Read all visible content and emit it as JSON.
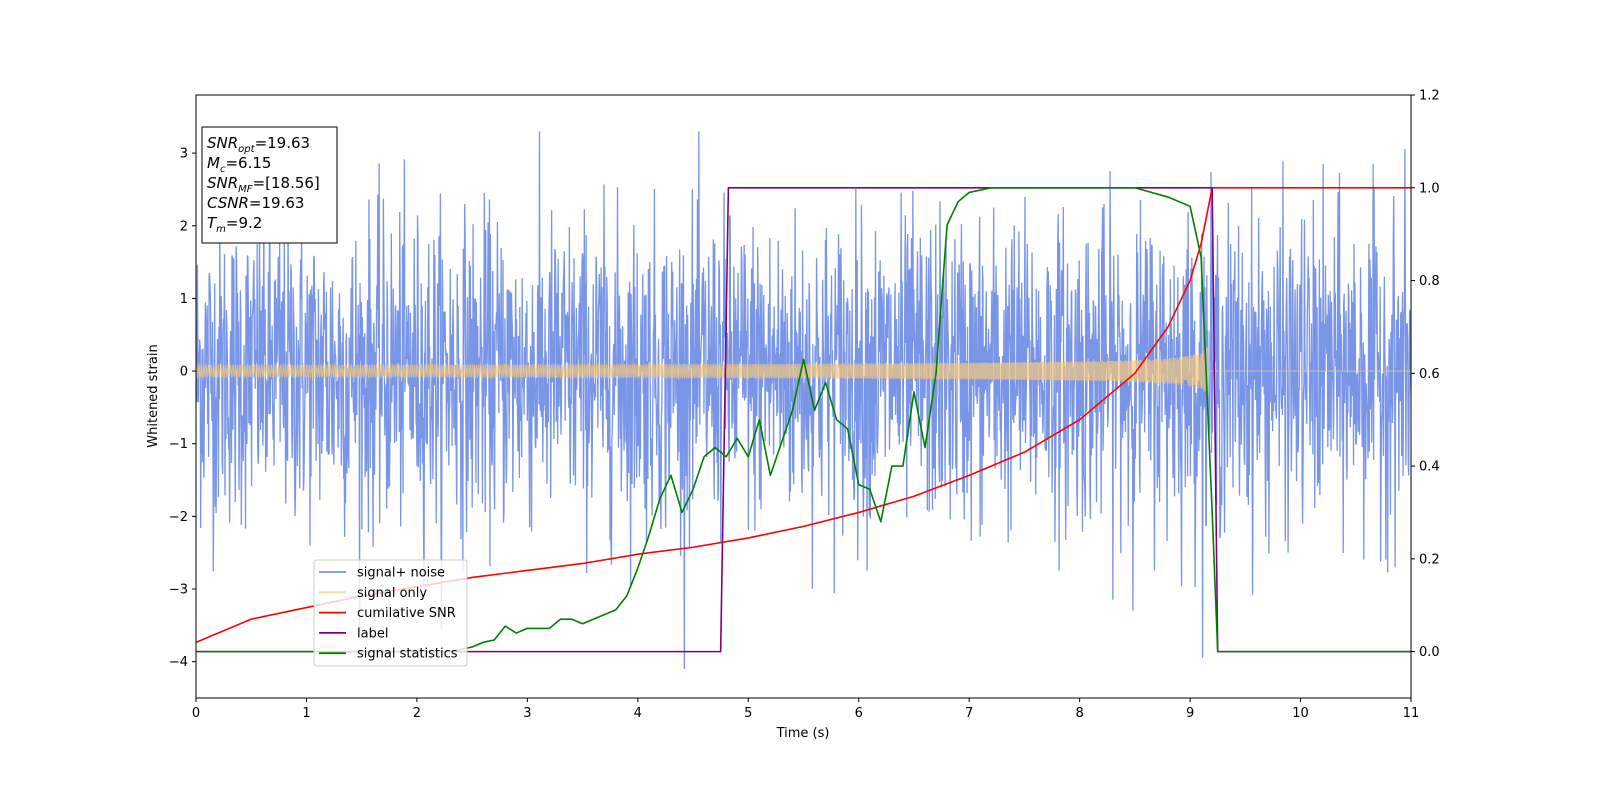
{
  "chart_data": {
    "type": "line",
    "xlabel": "Time (s)",
    "ylabel": "Whitened strain",
    "xlim": [
      0,
      11
    ],
    "ylim_left": [
      -4.5,
      3.8
    ],
    "ylim_right": [
      -0.1,
      1.2
    ],
    "x_ticks": [
      "0",
      "1",
      "2",
      "3",
      "4",
      "5",
      "6",
      "7",
      "8",
      "9",
      "10",
      "11"
    ],
    "y_left_ticks": [
      "−4",
      "−3",
      "−2",
      "−1",
      "0",
      "1",
      "2",
      "3"
    ],
    "y_right_ticks": [
      "0.0",
      "0.2",
      "0.4",
      "0.6",
      "0.8",
      "1.0",
      "1.2"
    ],
    "grid": false,
    "legend_position": "lower-left",
    "annotation": [
      {
        "name": "SNR",
        "sub": "opt",
        "text": "=19.63"
      },
      {
        "name": "M",
        "sub": "c",
        "text": "=6.15"
      },
      {
        "name": "SNR",
        "sub": "MF",
        "text": "=[18.56]"
      },
      {
        "name": "CSNR",
        "sub": "",
        "text": "=19.63"
      },
      {
        "name": "T",
        "sub": "m",
        "text": "=9.2"
      }
    ],
    "series": [
      {
        "name": "signal+ noise",
        "axis": "left",
        "color": "#7895e8",
        "style": "noise band approx. ±2.2 with spikes to ±3.3",
        "x_range": [
          0,
          11
        ]
      },
      {
        "name": "signal only",
        "axis": "left",
        "color": "#f5c77a",
        "style": "chirp, amplitude grows from 0.08 at t=0 to ~1.0 at t=9.15, then 0",
        "x_range": [
          0,
          11
        ]
      },
      {
        "name": "cumilative SNR",
        "axis": "right",
        "color": "#ff0000",
        "x": [
          0,
          0.5,
          1,
          1.5,
          2,
          2.5,
          3,
          3.5,
          4,
          4.5,
          5,
          5.5,
          6,
          6.5,
          7,
          7.5,
          8,
          8.5,
          8.8,
          9.0,
          9.1,
          9.2,
          9.25,
          11
        ],
        "y": [
          0.02,
          0.07,
          0.095,
          0.12,
          0.14,
          0.16,
          0.175,
          0.19,
          0.21,
          0.225,
          0.245,
          0.27,
          0.3,
          0.335,
          0.38,
          0.43,
          0.5,
          0.6,
          0.7,
          0.8,
          0.88,
          1.0,
          1.0,
          1.0
        ]
      },
      {
        "name": "label",
        "axis": "right",
        "color": "#800080",
        "x": [
          0,
          4.75,
          4.82,
          9.2,
          9.25,
          11
        ],
        "y": [
          0,
          0,
          1,
          1,
          0,
          0
        ]
      },
      {
        "name": "signal statistics",
        "axis": "right",
        "color": "#008000",
        "x": [
          0,
          0.5,
          1,
          1.5,
          2,
          2.3,
          2.5,
          2.6,
          2.7,
          2.8,
          2.9,
          3.0,
          3.1,
          3.2,
          3.3,
          3.4,
          3.5,
          3.6,
          3.7,
          3.8,
          3.9,
          4.0,
          4.1,
          4.2,
          4.3,
          4.4,
          4.5,
          4.6,
          4.7,
          4.8,
          4.9,
          5.0,
          5.1,
          5.2,
          5.3,
          5.4,
          5.5,
          5.6,
          5.7,
          5.8,
          5.9,
          6.0,
          6.1,
          6.2,
          6.3,
          6.4,
          6.5,
          6.6,
          6.7,
          6.8,
          6.9,
          7.0,
          7.2,
          7.5,
          8.0,
          8.5,
          8.8,
          9.0,
          9.1,
          9.2,
          9.25,
          11
        ],
        "y": [
          0.0,
          0.0,
          0.0,
          0.0,
          0.0,
          0.0,
          0.01,
          0.02,
          0.025,
          0.055,
          0.04,
          0.05,
          0.05,
          0.05,
          0.07,
          0.07,
          0.06,
          0.07,
          0.08,
          0.09,
          0.12,
          0.18,
          0.25,
          0.33,
          0.38,
          0.3,
          0.35,
          0.42,
          0.44,
          0.42,
          0.46,
          0.42,
          0.5,
          0.38,
          0.45,
          0.52,
          0.63,
          0.52,
          0.58,
          0.5,
          0.48,
          0.36,
          0.35,
          0.28,
          0.4,
          0.4,
          0.56,
          0.44,
          0.6,
          0.92,
          0.97,
          0.99,
          1.0,
          1.0,
          1.0,
          1.0,
          0.98,
          0.96,
          0.85,
          0.3,
          0.0,
          0.0
        ]
      }
    ]
  }
}
